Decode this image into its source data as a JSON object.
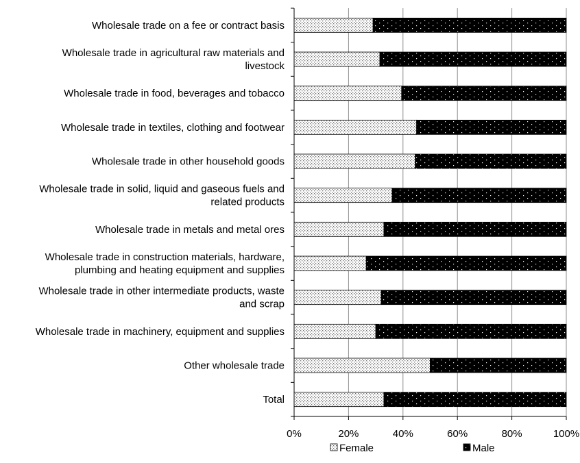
{
  "chart_data": {
    "type": "bar",
    "orientation": "horizontal",
    "stacked_percent": true,
    "title": "",
    "xlabel": "",
    "ylabel": "",
    "xlim": [
      0,
      100
    ],
    "x_ticks": [
      "0%",
      "20%",
      "40%",
      "60%",
      "80%",
      "100%"
    ],
    "grid": "vertical gridlines",
    "legend_position": "bottom",
    "categories": [
      [
        "Wholesale trade on a fee or contract basis"
      ],
      [
        "Wholesale trade in agricultural raw materials and",
        "livestock"
      ],
      [
        "Wholesale trade in food, beverages and tobacco"
      ],
      [
        "Wholesale trade in textiles, clothing and footwear"
      ],
      [
        "Wholesale trade in other household goods"
      ],
      [
        "Wholesale trade in solid, liquid and gaseous fuels and",
        "related products"
      ],
      [
        "Wholesale trade in metals and metal ores"
      ],
      [
        "Wholesale trade in construction materials, hardware,",
        "plumbing and heating equipment and supplies"
      ],
      [
        "Wholesale trade in other intermediate products, waste",
        "and scrap"
      ],
      [
        "Wholesale trade in machinery, equipment and supplies"
      ],
      [
        "Other wholesale trade"
      ],
      [
        "Total"
      ]
    ],
    "series": [
      {
        "name": "Female",
        "pattern": "light dotted",
        "color": "#cfcfcf",
        "values": [
          29,
          31.5,
          39.5,
          45,
          44.5,
          36,
          33,
          26.5,
          32,
          30,
          50,
          33
        ]
      },
      {
        "name": "Male",
        "pattern": "black with white dots",
        "color": "#000000",
        "values": [
          71,
          68.5,
          60.5,
          55,
          55.5,
          64,
          67,
          73.5,
          68,
          70,
          50,
          67
        ]
      }
    ]
  }
}
